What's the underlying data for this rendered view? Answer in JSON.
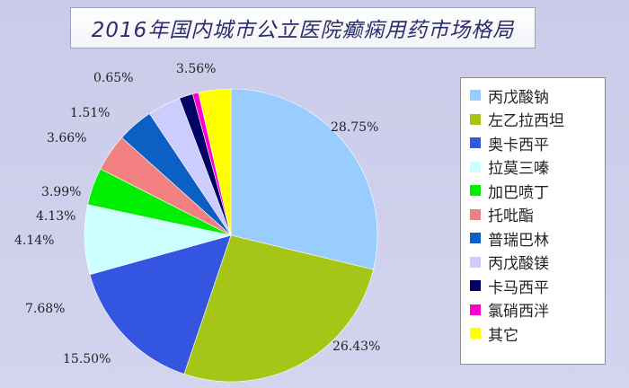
{
  "title": "2016年国内城市公立医院癫痫用药市场格局",
  "chart_data": {
    "type": "pie",
    "title": "2016年国内城市公立医院癫痫用药市场格局",
    "series": [
      {
        "name": "丙戊酸钠",
        "value": 28.75,
        "label": "28.75%",
        "color": "#99ccff"
      },
      {
        "name": "左乙拉西坦",
        "value": 26.43,
        "label": "26.43%",
        "color": "#a6c617"
      },
      {
        "name": "奥卡西平",
        "value": 15.5,
        "label": "15.50%",
        "color": "#3355e0"
      },
      {
        "name": "拉莫三嗪",
        "value": 7.68,
        "label": "7.68%",
        "color": "#ccffff"
      },
      {
        "name": "加巴喷丁",
        "value": 4.14,
        "label": "4.14%",
        "color": "#00ee00"
      },
      {
        "name": "托吡酯",
        "value": 4.13,
        "label": "4.13%",
        "color": "#f28080"
      },
      {
        "name": "普瑞巴林",
        "value": 3.99,
        "label": "3.99%",
        "color": "#0c60c4"
      },
      {
        "name": "丙戊酸镁",
        "value": 3.66,
        "label": "3.66%",
        "color": "#ccccff"
      },
      {
        "name": "卡马西平",
        "value": 1.51,
        "label": "1.51%",
        "color": "#000066"
      },
      {
        "name": "氯硝西泮",
        "value": 0.65,
        "label": "0.65%",
        "color": "#ff00cc"
      },
      {
        "name": "其它",
        "value": 3.56,
        "label": "3.56%",
        "color": "#ffff00"
      }
    ],
    "legend_position": "right"
  }
}
